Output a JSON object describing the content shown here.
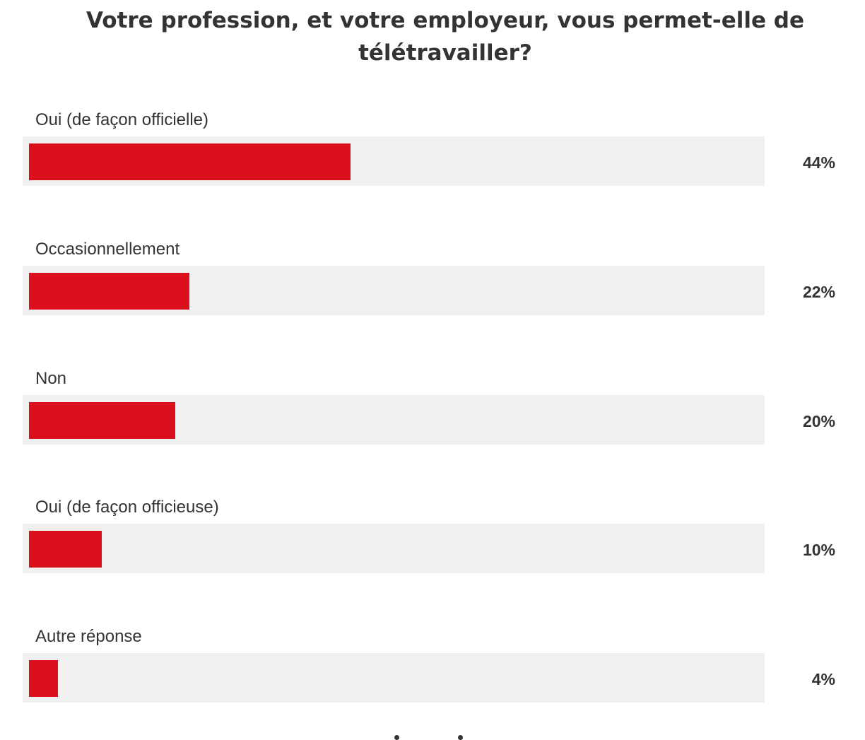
{
  "chart_data": {
    "type": "bar",
    "orientation": "horizontal",
    "title": "Votre profession, et votre employeur, vous permet-elle de télétravailler?",
    "categories": [
      "Oui (de façon officielle)",
      "Occasionnellement",
      "Non",
      "Oui (de façon officieuse)",
      "Autre réponse"
    ],
    "values": [
      44,
      22,
      20,
      10,
      4
    ],
    "value_labels": [
      "44%",
      "22%",
      "20%",
      "10%",
      "4%"
    ],
    "unit": "%",
    "xlim": [
      0,
      100
    ],
    "grid": false,
    "legend": "none",
    "bar_color": "#dc0f1f",
    "track_color": "#f0f0f0"
  }
}
